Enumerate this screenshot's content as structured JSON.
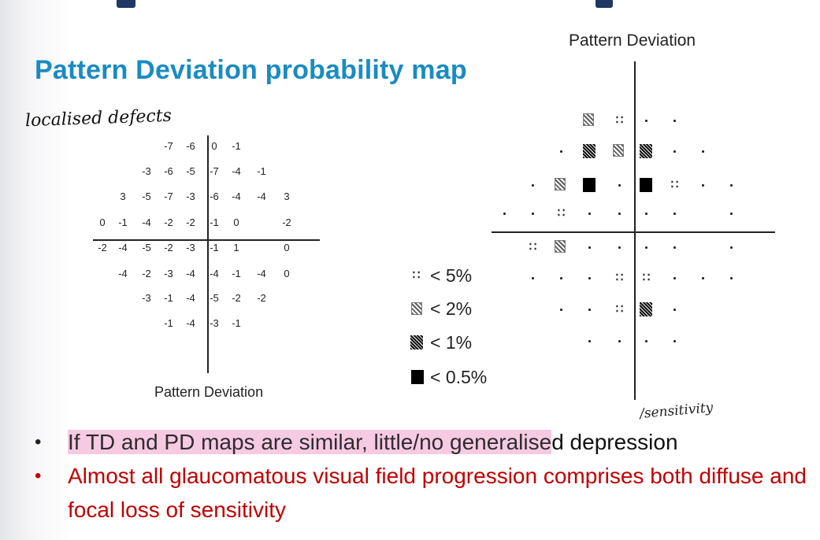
{
  "slide": {
    "title": "Pattern Deviation probability map",
    "handwriting_left": "localised defects",
    "handwriting_right": "/sensitivity"
  },
  "left_chart": {
    "caption": "Pattern Deviation",
    "rows": [
      [
        "-7",
        "-6",
        "|",
        "0",
        "-1"
      ],
      [
        "-3",
        "-6",
        "-5",
        "|",
        "-7",
        "-4",
        "-1"
      ],
      [
        "3",
        "-5",
        "-7",
        "-3",
        "|",
        "-6",
        "-4",
        "-4",
        "3"
      ],
      [
        "0",
        "-1",
        "-4",
        "-2",
        "-2",
        "|",
        "-1",
        "0",
        "",
        "-2"
      ],
      [
        "-2",
        "-4",
        "-5",
        "-2",
        "-3",
        "|",
        "-1",
        "1",
        "",
        "0"
      ],
      [
        "-4",
        "-2",
        "-3",
        "-4",
        "|",
        "-4",
        "-1",
        "-4",
        "0"
      ],
      [
        "-3",
        "-1",
        "-4",
        "|",
        "-5",
        "-2",
        "-2"
      ],
      [
        "-1",
        "-4",
        "|",
        "-3",
        "-1"
      ]
    ]
  },
  "right_chart": {
    "caption": "Pattern Deviation"
  },
  "legend": [
    {
      "symbol": "dots-icon",
      "label": "< 5%"
    },
    {
      "symbol": "light-hatch-icon",
      "label": "< 2%"
    },
    {
      "symbol": "dark-hatch-icon",
      "label": "< 1%"
    },
    {
      "symbol": "solid-square-icon",
      "label": "< 0.5%"
    }
  ],
  "bullets": {
    "b1_highlight": "If TD and PD maps are similar, little/no generalise",
    "b1_rest": "d depression",
    "b2": "Almost all glaucomatous visual field progression comprises both diffuse and focal loss of sensitivity"
  }
}
